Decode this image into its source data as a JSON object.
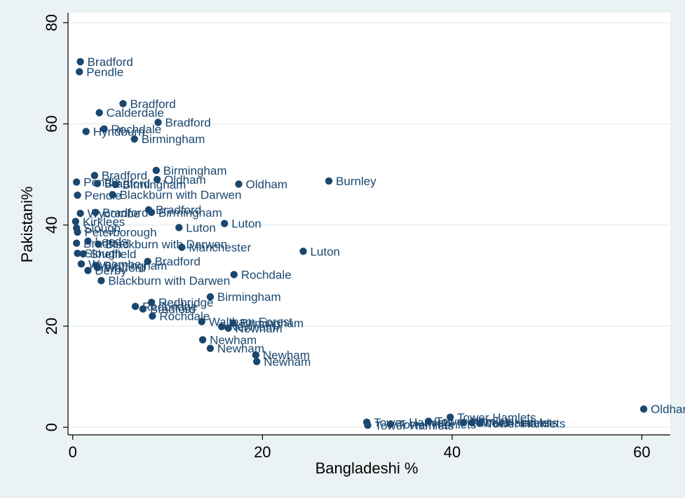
{
  "colors": {
    "outer_bg": "#eaf2f3",
    "plot_bg": "#ffffff",
    "marker": "#1a476f",
    "grid": "#e6eef0",
    "axis": "#000000"
  },
  "chart_data": {
    "type": "scatter",
    "title": "",
    "xlabel": "Bangladeshi %",
    "ylabel": "Pakistani%",
    "xlim": [
      -0.5,
      63
    ],
    "ylim": [
      -1.5,
      82
    ],
    "xticks": [
      0,
      20,
      40,
      60
    ],
    "yticks": [
      0,
      20,
      40,
      60,
      80
    ],
    "grid": true,
    "points": [
      {
        "x": 0.8,
        "y": 72.3,
        "label": "Bradford"
      },
      {
        "x": 0.7,
        "y": 70.3,
        "label": "Pendle"
      },
      {
        "x": 5.3,
        "y": 64.0,
        "label": "Bradford"
      },
      {
        "x": 2.8,
        "y": 62.2,
        "label": "Calderdale"
      },
      {
        "x": 9.0,
        "y": 60.3,
        "label": "Bradford"
      },
      {
        "x": 3.3,
        "y": 59.0,
        "label": "Rochdale"
      },
      {
        "x": 1.4,
        "y": 58.5,
        "label": "Hyndburn"
      },
      {
        "x": 6.5,
        "y": 57.0,
        "label": "Birmingham"
      },
      {
        "x": 8.8,
        "y": 50.8,
        "label": "Birmingham"
      },
      {
        "x": 2.3,
        "y": 49.8,
        "label": "Bradford"
      },
      {
        "x": 8.9,
        "y": 49.0,
        "label": "Oldham"
      },
      {
        "x": 0.4,
        "y": 48.5,
        "label": "Pendle"
      },
      {
        "x": 2.6,
        "y": 48.2,
        "label": "Bradford"
      },
      {
        "x": 4.5,
        "y": 48.0,
        "label": "Birmingham"
      },
      {
        "x": 17.5,
        "y": 48.1,
        "label": "Oldham"
      },
      {
        "x": 27.0,
        "y": 48.7,
        "label": "Burnley"
      },
      {
        "x": 4.2,
        "y": 46.0,
        "label": "Blackburn with Darwen"
      },
      {
        "x": 0.5,
        "y": 45.9,
        "label": "Pendle"
      },
      {
        "x": 8.0,
        "y": 43.0,
        "label": "Bradford"
      },
      {
        "x": 2.4,
        "y": 42.5,
        "label": "Bradford"
      },
      {
        "x": 8.3,
        "y": 42.5,
        "label": "Birmingham"
      },
      {
        "x": 0.8,
        "y": 42.3,
        "label": "Wycombe"
      },
      {
        "x": 0.3,
        "y": 40.7,
        "label": "Kirklees"
      },
      {
        "x": 16.0,
        "y": 40.3,
        "label": "Luton"
      },
      {
        "x": 11.2,
        "y": 39.5,
        "label": "Luton"
      },
      {
        "x": 0.4,
        "y": 39.4,
        "label": "Slough"
      },
      {
        "x": 0.5,
        "y": 38.6,
        "label": "Peterborough"
      },
      {
        "x": 1.6,
        "y": 36.8,
        "label": "Leeds"
      },
      {
        "x": 0.4,
        "y": 36.4,
        "label": "Bradford"
      },
      {
        "x": 2.7,
        "y": 36.2,
        "label": "Blackburn with Darwen"
      },
      {
        "x": 11.5,
        "y": 35.6,
        "label": "Manchester"
      },
      {
        "x": 24.3,
        "y": 34.8,
        "label": "Luton"
      },
      {
        "x": 0.5,
        "y": 34.4,
        "label": "Slough"
      },
      {
        "x": 1.1,
        "y": 34.3,
        "label": "Sheffield"
      },
      {
        "x": 7.9,
        "y": 32.8,
        "label": "Bradford"
      },
      {
        "x": 0.9,
        "y": 32.3,
        "label": "Wycombe"
      },
      {
        "x": 2.5,
        "y": 32.0,
        "label": "Birmingham"
      },
      {
        "x": 2.6,
        "y": 31.6,
        "label": "Watford"
      },
      {
        "x": 1.6,
        "y": 31.0,
        "label": "Derby"
      },
      {
        "x": 17.0,
        "y": 30.2,
        "label": "Rochdale"
      },
      {
        "x": 3.0,
        "y": 29.0,
        "label": "Blackburn with Darwen"
      },
      {
        "x": 14.5,
        "y": 25.8,
        "label": "Birmingham"
      },
      {
        "x": 8.3,
        "y": 24.7,
        "label": "Redbridge"
      },
      {
        "x": 6.6,
        "y": 23.9,
        "label": "Redbridge"
      },
      {
        "x": 7.4,
        "y": 23.4,
        "label": "Bradford"
      },
      {
        "x": 8.4,
        "y": 22.0,
        "label": "Rochdale"
      },
      {
        "x": 13.6,
        "y": 20.9,
        "label": "Waltham Forest"
      },
      {
        "x": 16.9,
        "y": 20.6,
        "label": "Birmingham"
      },
      {
        "x": 15.7,
        "y": 19.9,
        "label": "Newham"
      },
      {
        "x": 16.4,
        "y": 19.6,
        "label": "Newham"
      },
      {
        "x": 13.7,
        "y": 17.3,
        "label": "Newham"
      },
      {
        "x": 14.5,
        "y": 15.6,
        "label": "Newham"
      },
      {
        "x": 19.3,
        "y": 14.3,
        "label": "Newham"
      },
      {
        "x": 19.4,
        "y": 13.0,
        "label": "Newham"
      },
      {
        "x": 60.2,
        "y": 3.6,
        "label": "Oldham"
      },
      {
        "x": 39.8,
        "y": 2.0,
        "label": "Tower Hamlets"
      },
      {
        "x": 37.5,
        "y": 1.2,
        "label": "Tower Hamlets"
      },
      {
        "x": 31.0,
        "y": 1.0,
        "label": "Tower Hamlets"
      },
      {
        "x": 41.2,
        "y": 0.9,
        "label": "Tower Hamlets"
      },
      {
        "x": 42.1,
        "y": 0.9,
        "label": "Tower Hamlets"
      },
      {
        "x": 42.9,
        "y": 0.8,
        "label": "Tower Hamlets"
      },
      {
        "x": 33.5,
        "y": 0.6,
        "label": "Tower Hamlets"
      },
      {
        "x": 31.1,
        "y": 0.4,
        "label": "Tower Hamlets"
      }
    ]
  }
}
